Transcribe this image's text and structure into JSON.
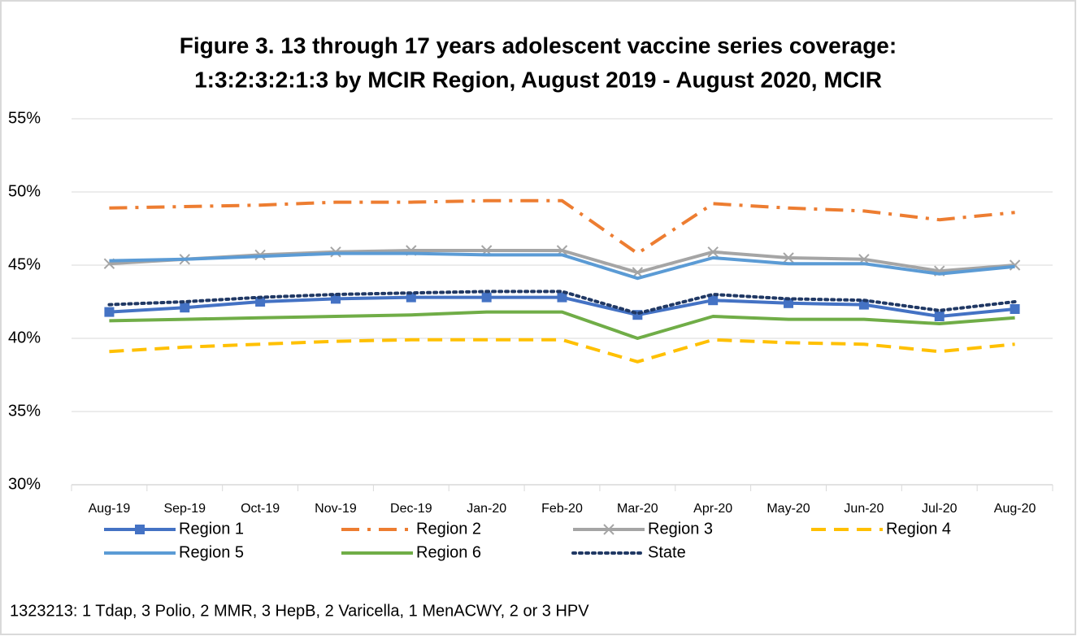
{
  "chart_data": {
    "type": "line",
    "title": [
      "Figure 3. 13 through 17 years adolescent vaccine series coverage:",
      "1:3:2:3:2:1:3 by MCIR Region, August 2019 - August 2020, MCIR"
    ],
    "categories": [
      "Aug-19",
      "Sep-19",
      "Oct-19",
      "Nov-19",
      "Dec-19",
      "Jan-20",
      "Feb-20",
      "Mar-20",
      "Apr-20",
      "May-20",
      "Jun-20",
      "Jul-20",
      "Aug-20"
    ],
    "series": [
      {
        "name": "Region 1",
        "color": "#4472c4",
        "style": "solid",
        "marker": "square",
        "values": [
          41.8,
          42.1,
          42.5,
          42.7,
          42.8,
          42.8,
          42.8,
          41.6,
          42.6,
          42.4,
          42.3,
          41.5,
          42.0
        ]
      },
      {
        "name": "Region 2",
        "color": "#ed7d31",
        "style": "dashdot",
        "values": [
          48.9,
          49.0,
          49.1,
          49.3,
          49.3,
          49.4,
          49.4,
          45.8,
          49.2,
          48.9,
          48.7,
          48.1,
          48.6
        ]
      },
      {
        "name": "Region 3",
        "color": "#a5a5a5",
        "style": "solid",
        "marker": "x",
        "values": [
          45.1,
          45.4,
          45.7,
          45.9,
          46.0,
          46.0,
          46.0,
          44.5,
          45.9,
          45.5,
          45.4,
          44.6,
          45.0
        ]
      },
      {
        "name": "Region 4",
        "color": "#ffc000",
        "style": "dashed",
        "values": [
          39.1,
          39.4,
          39.6,
          39.8,
          39.9,
          39.9,
          39.9,
          38.4,
          39.9,
          39.7,
          39.6,
          39.1,
          39.6
        ]
      },
      {
        "name": "Region 5",
        "color": "#5b9bd5",
        "style": "solid",
        "values": [
          45.3,
          45.4,
          45.6,
          45.8,
          45.8,
          45.7,
          45.7,
          44.1,
          45.5,
          45.1,
          45.1,
          44.4,
          44.9
        ]
      },
      {
        "name": "Region 6",
        "color": "#70ad47",
        "style": "solid",
        "values": [
          41.2,
          41.3,
          41.4,
          41.5,
          41.6,
          41.8,
          41.8,
          40.0,
          41.5,
          41.3,
          41.3,
          41.0,
          41.4
        ]
      },
      {
        "name": "State",
        "color": "#203864",
        "style": "dotted",
        "values": [
          42.3,
          42.5,
          42.8,
          43.0,
          43.1,
          43.2,
          43.2,
          41.7,
          43.0,
          42.7,
          42.6,
          41.9,
          42.5
        ]
      }
    ],
    "ylim": [
      30,
      55
    ],
    "yticks": [
      {
        "value": 30,
        "label": "30%"
      },
      {
        "value": 35,
        "label": "35%"
      },
      {
        "value": 40,
        "label": "40%"
      },
      {
        "value": 45,
        "label": "45%"
      },
      {
        "value": 50,
        "label": "50%"
      },
      {
        "value": 55,
        "label": "55%"
      }
    ],
    "grid": true,
    "legend": "bottom",
    "footnote": "1323213: 1 Tdap, 3 Polio, 2 MMR, 3 HepB, 2 Varicella, 1 MenACWY, 2 or 3 HPV"
  }
}
